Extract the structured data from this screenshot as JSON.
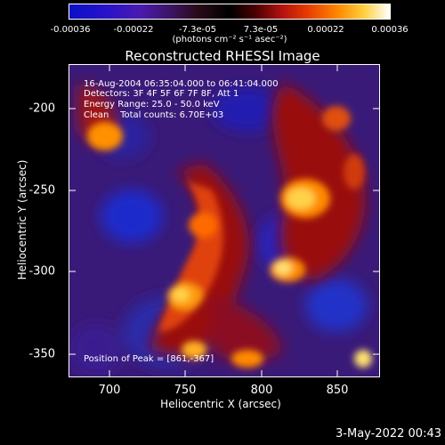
{
  "colorbar": {
    "ticks": [
      "-0.00036",
      "-0.00022",
      "-7.3e-05",
      "7.3e-05",
      "0.00022",
      "0.00036"
    ],
    "unit": "(photons cm⁻² s⁻¹ asec⁻²)",
    "range": [
      -0.00036,
      0.00036
    ]
  },
  "chart_data": {
    "type": "heatmap",
    "title": "Reconstructed RHESSI Image",
    "xlabel": "Heliocentric X (arcsec)",
    "ylabel": "Heliocentric Y (arcsec)",
    "xlim": [
      676,
      868
    ],
    "ylim": [
      -366,
      -178
    ],
    "x_ticks": [
      "700",
      "750",
      "800",
      "850"
    ],
    "y_ticks": [
      "-200",
      "-250",
      "-300",
      "-350"
    ],
    "peak_position": [
      861,
      -367
    ],
    "annotations": [
      "16-Aug-2004 06:35:04.000 to 06:41:04.000",
      "Detectors: 3F 4F 5F 6F 7F 8F, Att 1",
      "Energy Range: 25.0 - 50.0 keV",
      "Clean    Total counts: 6.70E+03",
      "Position of Peak = [861,-367]"
    ]
  },
  "timestamp": "3-May-2022 00:43"
}
